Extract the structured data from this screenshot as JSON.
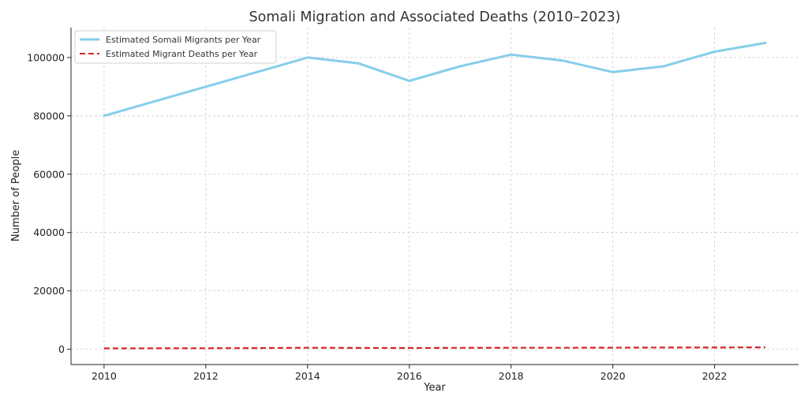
{
  "chart_data": {
    "type": "line",
    "title": "Somali Migration and Associated Deaths (2010–2023)",
    "xlabel": "Year",
    "ylabel": "Number of People",
    "x": [
      2010,
      2011,
      2012,
      2013,
      2014,
      2015,
      2016,
      2017,
      2018,
      2019,
      2020,
      2021,
      2022,
      2023
    ],
    "xlim": [
      2009.35,
      2023.65
    ],
    "ylim": [
      -5250,
      110250
    ],
    "x_ticks": [
      2010,
      2012,
      2014,
      2016,
      2018,
      2020,
      2022
    ],
    "y_ticks": [
      0,
      20000,
      40000,
      60000,
      80000,
      100000
    ],
    "grid": true,
    "legend_position": "upper-left",
    "series": [
      {
        "name": "Estimated Somali Migrants per Year",
        "color": "#87CEEB",
        "style": "solid",
        "values": [
          80000,
          85000,
          90000,
          95000,
          100000,
          98000,
          92000,
          97000,
          101000,
          99000,
          95000,
          97000,
          102000,
          105000
        ]
      },
      {
        "name": "Estimated Migrant Deaths per Year",
        "color": "#D62728",
        "style": "dashed",
        "values": [
          300,
          320,
          350,
          400,
          500,
          450,
          420,
          480,
          500,
          520,
          550,
          580,
          600,
          650
        ]
      }
    ]
  }
}
